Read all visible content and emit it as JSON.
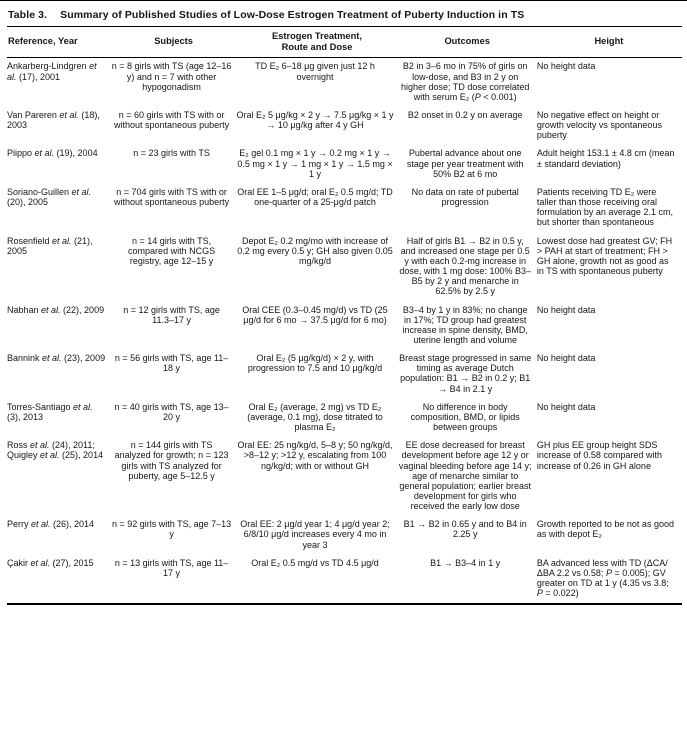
{
  "page": {
    "background": "#ffffff",
    "text_color": "#161616",
    "rule_color": "#000000"
  },
  "table": {
    "title_label": "Table 3.",
    "title_text": "Summary of Published Studies of Low-Dose Estrogen Treatment of Puberty Induction in TS",
    "columns": [
      {
        "key": "reference",
        "label": "Reference, Year",
        "width": "15.5%",
        "align": "left",
        "align_header": "left"
      },
      {
        "key": "subjects",
        "label": "Subjects",
        "width": "18.5%",
        "align": "center",
        "align_header": "center"
      },
      {
        "key": "treatment",
        "label": "Estrogen Treatment,\nRoute and Dose",
        "width": "24%",
        "align": "center",
        "align_header": "center"
      },
      {
        "key": "outcomes",
        "label": "Outcomes",
        "width": "20.5%",
        "align": "center",
        "align_header": "center"
      },
      {
        "key": "height",
        "label": "Height",
        "width": "21.5%",
        "align": "left",
        "align_header": "center"
      }
    ],
    "rows": [
      {
        "reference": [
          {
            "t": "Ankarberg-Lindgren "
          },
          {
            "t": "et al.",
            "i": true
          },
          {
            "t": " (17), 2001"
          }
        ],
        "subjects": "n = 8 girls with TS (age 12–16 y) and n = 7 with other hypogonadism",
        "treatment": "TD E₂ 6–18 μg given just 12 h overnight",
        "outcomes": [
          {
            "t": "B2 in 3–6 mo in 75% of girls on low-dose, and B3 in 2 y on higher dose; TD dose correlated with serum E₂ ("
          },
          {
            "t": "P",
            "i": true
          },
          {
            "t": " < 0.001)"
          }
        ],
        "height": "No height data"
      },
      {
        "reference": [
          {
            "t": "Van Pareren "
          },
          {
            "t": "et al.",
            "i": true
          },
          {
            "t": " (18), 2003"
          }
        ],
        "subjects": "n = 60 girls with TS with or without spontaneous puberty",
        "treatment": "Oral E₂ 5 μg/kg × 2 y → 7.5 μg/kg × 1 y → 10 μg/kg after 4 y GH",
        "outcomes": "B2 onset in 0.2 y on average",
        "height": "No negative effect on height or growth velocity vs spontaneous puberty"
      },
      {
        "reference": [
          {
            "t": "Piippo "
          },
          {
            "t": "et al.",
            "i": true
          },
          {
            "t": " (19), 2004"
          }
        ],
        "subjects": "n = 23 girls with TS",
        "treatment": "E₂ gel 0.1 mg × 1 y → 0.2 mg × 1 y → 0.5 mg × 1 y → 1 mg × 1 y → 1.5 mg × 1 y",
        "outcomes": "Pubertal advance about one stage per year treatment with 50% B2 at 6 mo",
        "height": "Adult height 153.1 ± 4.8 cm (mean ± standard deviation)"
      },
      {
        "reference": [
          {
            "t": "Soriano-Guillen "
          },
          {
            "t": "et al.",
            "i": true
          },
          {
            "t": " (20), 2005"
          }
        ],
        "subjects": "n = 704 girls with TS with or without spontaneous puberty",
        "treatment": "Oral EE 1–5 μg/d; oral E₂ 0.5 mg/d; TD one-quarter of a 25-μg/d patch",
        "outcomes": "No data on rate of pubertal progression",
        "height": "Patients receiving TD E₂ were taller than those receiving oral formulation by an average 2.1 cm, but shorter than spontaneous"
      },
      {
        "reference": [
          {
            "t": "Rosenfield "
          },
          {
            "t": "et al.",
            "i": true
          },
          {
            "t": " (21), 2005"
          }
        ],
        "subjects": "n = 14 girls with TS, compared with NCGS registry, age 12–15 y",
        "treatment": "Depot E₂ 0.2 mg/mo with increase of 0.2 mg every 0.5 y; GH also given 0.05 mg/kg/d",
        "outcomes": "Half of girls B1 → B2 in 0.5 y, and increased one stage per 0.5 y with each 0.2-mg increase in dose, with 1 mg dose: 100% B3–B5 by 2 y and menarche in 62.5% by 2.5 y",
        "height": "Lowest dose had greatest GV; FH > PAH at start of treatment; FH > GH alone, growth not as good as in TS with spontaneous puberty"
      },
      {
        "reference": [
          {
            "t": "Nabhan "
          },
          {
            "t": "et al.",
            "i": true
          },
          {
            "t": " (22), 2009"
          }
        ],
        "subjects": "n = 12 girls with TS, age 11.3–17 y",
        "treatment": "Oral CEE (0.3–0.45 mg/d) vs TD (25 μg/d for 6 mo → 37.5 μg/d for 6 mo)",
        "outcomes": "B3–4 by 1 y in 83%; no change in 17%; TD group had greatest increase in spine density, BMD, uterine length and volume",
        "height": "No height data"
      },
      {
        "reference": [
          {
            "t": "Bannink "
          },
          {
            "t": "et al.",
            "i": true
          },
          {
            "t": " (23), 2009"
          }
        ],
        "subjects": "n = 56 girls with TS, age 11–18 y",
        "treatment": "Oral E₂ (5 μg/kg/d) × 2 y, with progression to 7.5 and 10 μg/kg/d",
        "outcomes": "Breast stage progressed in same timing as average Dutch population: B1 → B2 in 0.2 y; B1 → B4 in 2.1 y",
        "height": "No height data"
      },
      {
        "reference": [
          {
            "t": "Torres-Santiago "
          },
          {
            "t": "et al.",
            "i": true
          },
          {
            "t": " (3), 2013"
          }
        ],
        "subjects": "n = 40 girls with TS, age 13–20 y",
        "treatment": "Oral E₂ (average, 2 mg) vs TD E₂ (average, 0.1 mg), dose titrated to plasma E₂",
        "outcomes": "No difference in body composition, BMD, or lipids between groups",
        "height": "No height data"
      },
      {
        "reference": [
          {
            "t": "Ross "
          },
          {
            "t": "et al.",
            "i": true
          },
          {
            "t": " (24), 2011; Quigley "
          },
          {
            "t": "et al.",
            "i": true
          },
          {
            "t": " (25), 2014"
          }
        ],
        "subjects": "n = 144 girls with TS analyzed for growth; n = 123 girls with TS analyzed for puberty, age 5–12.5 y",
        "treatment": "Oral EE: 25 ng/kg/d, 5–8 y; 50 ng/kg/d, >8–12 y; >12 y, escalating from 100 ng/kg/d; with or without GH",
        "outcomes": "EE dose decreased for breast development before age 12 y or vaginal bleeding before age 14 y; age of menarche similar to general population; earlier breast development for girls who received the early low dose",
        "height": "GH plus EE group height SDS increase of 0.58 compared with increase of 0.26 in GH alone"
      },
      {
        "reference": [
          {
            "t": "Perry "
          },
          {
            "t": "et al.",
            "i": true
          },
          {
            "t": " (26), 2014"
          }
        ],
        "subjects": "n = 92 girls with TS, age 7–13 y",
        "treatment": "Oral EE: 2 μg/d year 1; 4 μg/d year 2; 6/8/10 μg/d increases every 4 mo in year 3",
        "outcomes": "B1 → B2 in 0.65 y and to B4 in 2.25 y",
        "height": "Growth reported to be not as good as with depot E₂"
      },
      {
        "reference": [
          {
            "t": "Çakir "
          },
          {
            "t": "et al.",
            "i": true
          },
          {
            "t": " (27), 2015"
          }
        ],
        "subjects": "n = 13 girls with TS, age 11–17 y",
        "treatment": "Oral E₂ 0.5 mg/d vs TD 4.5 μg/d",
        "outcomes": "B1 → B3–4 in 1 y",
        "height": [
          {
            "t": "BA advanced less with TD (ΔCA/ΔBA 2.2 vs 0.58; "
          },
          {
            "t": "P",
            "i": true
          },
          {
            "t": " = 0.005); GV greater on TD at 1 y (4.35 vs 3.8; "
          },
          {
            "t": "P",
            "i": true
          },
          {
            "t": " = 0.022)"
          }
        ]
      }
    ]
  }
}
